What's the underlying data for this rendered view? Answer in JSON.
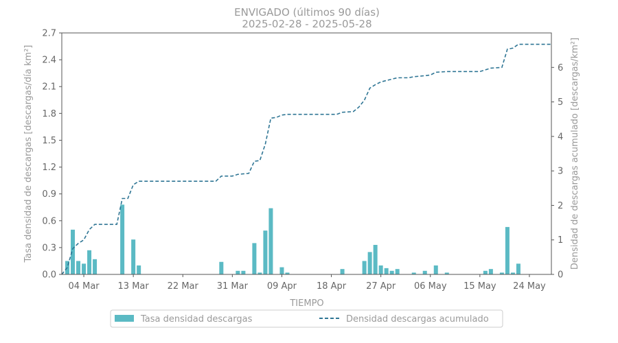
{
  "chart_data": {
    "type": "bar",
    "title": "ENVIGADO (últimos 90 días)",
    "subtitle": "2025-02-28  -  2025-05-28",
    "xlabel": "TIEMPO",
    "ylabel_left": "Tasa densidad de descargas [descargas/día km²]",
    "ylabel_right": "Densidad de descargas acumulado [descargas/km²]",
    "x_range": [
      "2025-02-28",
      "2025-05-28"
    ],
    "ylim_left": [
      0,
      2.7
    ],
    "ylim_right": [
      0,
      7.0
    ],
    "yticks_left": [
      "0.0",
      "0.3",
      "0.6",
      "0.9",
      "1.2",
      "1.5",
      "1.8",
      "2.1",
      "2.4",
      "2.7"
    ],
    "yticks_right": [
      "0",
      "1",
      "2",
      "3",
      "4",
      "5",
      "6"
    ],
    "xticks": [
      {
        "date": "2025-03-04",
        "label": "04 Mar"
      },
      {
        "date": "2025-03-13",
        "label": "13 Mar"
      },
      {
        "date": "2025-03-22",
        "label": "22 Mar"
      },
      {
        "date": "2025-03-31",
        "label": "31 Mar"
      },
      {
        "date": "2025-04-09",
        "label": "09 Apr"
      },
      {
        "date": "2025-04-18",
        "label": "18 Apr"
      },
      {
        "date": "2025-04-27",
        "label": "27 Apr"
      },
      {
        "date": "2025-05-06",
        "label": "06 May"
      },
      {
        "date": "2025-05-15",
        "label": "15 May"
      },
      {
        "date": "2025-05-24",
        "label": "24 May"
      }
    ],
    "legend_placement": "bottom-center",
    "grid": false,
    "series": [
      {
        "name": "Tasa densidad descargas",
        "kind": "bar",
        "color": "#5bbac4",
        "points": [
          {
            "date": "2025-03-01",
            "value": 0.15
          },
          {
            "date": "2025-03-02",
            "value": 0.5
          },
          {
            "date": "2025-03-03",
            "value": 0.15
          },
          {
            "date": "2025-03-04",
            "value": 0.12
          },
          {
            "date": "2025-03-05",
            "value": 0.27
          },
          {
            "date": "2025-03-06",
            "value": 0.17
          },
          {
            "date": "2025-03-11",
            "value": 0.78
          },
          {
            "date": "2025-03-13",
            "value": 0.39
          },
          {
            "date": "2025-03-14",
            "value": 0.1
          },
          {
            "date": "2025-03-29",
            "value": 0.14
          },
          {
            "date": "2025-04-01",
            "value": 0.04
          },
          {
            "date": "2025-04-02",
            "value": 0.04
          },
          {
            "date": "2025-04-04",
            "value": 0.35
          },
          {
            "date": "2025-04-05",
            "value": 0.02
          },
          {
            "date": "2025-04-06",
            "value": 0.49
          },
          {
            "date": "2025-04-07",
            "value": 0.74
          },
          {
            "date": "2025-04-09",
            "value": 0.08
          },
          {
            "date": "2025-04-10",
            "value": 0.02
          },
          {
            "date": "2025-04-20",
            "value": 0.06
          },
          {
            "date": "2025-04-24",
            "value": 0.15
          },
          {
            "date": "2025-04-25",
            "value": 0.25
          },
          {
            "date": "2025-04-26",
            "value": 0.33
          },
          {
            "date": "2025-04-27",
            "value": 0.1
          },
          {
            "date": "2025-04-28",
            "value": 0.07
          },
          {
            "date": "2025-04-29",
            "value": 0.04
          },
          {
            "date": "2025-04-30",
            "value": 0.06
          },
          {
            "date": "2025-05-03",
            "value": 0.02
          },
          {
            "date": "2025-05-05",
            "value": 0.04
          },
          {
            "date": "2025-05-07",
            "value": 0.1
          },
          {
            "date": "2025-05-09",
            "value": 0.02
          },
          {
            "date": "2025-05-16",
            "value": 0.04
          },
          {
            "date": "2025-05-17",
            "value": 0.06
          },
          {
            "date": "2025-05-19",
            "value": 0.02
          },
          {
            "date": "2025-05-20",
            "value": 0.53
          },
          {
            "date": "2025-05-21",
            "value": 0.02
          },
          {
            "date": "2025-05-22",
            "value": 0.12
          }
        ]
      },
      {
        "name": "Densidad descargas acumulado",
        "kind": "line",
        "style": "dashed",
        "color": "#2e7594",
        "points": [
          {
            "date": "2025-02-28",
            "value": 0.0
          },
          {
            "date": "2025-03-01",
            "value": 0.2
          },
          {
            "date": "2025-03-02",
            "value": 0.75
          },
          {
            "date": "2025-03-03",
            "value": 0.9
          },
          {
            "date": "2025-03-04",
            "value": 1.0
          },
          {
            "date": "2025-03-05",
            "value": 1.3
          },
          {
            "date": "2025-03-06",
            "value": 1.45
          },
          {
            "date": "2025-03-10",
            "value": 1.45
          },
          {
            "date": "2025-03-11",
            "value": 2.2
          },
          {
            "date": "2025-03-12",
            "value": 2.2
          },
          {
            "date": "2025-03-13",
            "value": 2.6
          },
          {
            "date": "2025-03-14",
            "value": 2.7
          },
          {
            "date": "2025-03-28",
            "value": 2.7
          },
          {
            "date": "2025-03-29",
            "value": 2.85
          },
          {
            "date": "2025-03-31",
            "value": 2.85
          },
          {
            "date": "2025-04-01",
            "value": 2.9
          },
          {
            "date": "2025-04-03",
            "value": 2.93
          },
          {
            "date": "2025-04-04",
            "value": 3.28
          },
          {
            "date": "2025-04-05",
            "value": 3.3
          },
          {
            "date": "2025-04-06",
            "value": 3.78
          },
          {
            "date": "2025-04-07",
            "value": 4.53
          },
          {
            "date": "2025-04-08",
            "value": 4.55
          },
          {
            "date": "2025-04-09",
            "value": 4.62
          },
          {
            "date": "2025-04-10",
            "value": 4.64
          },
          {
            "date": "2025-04-19",
            "value": 4.64
          },
          {
            "date": "2025-04-20",
            "value": 4.7
          },
          {
            "date": "2025-04-22",
            "value": 4.72
          },
          {
            "date": "2025-04-23",
            "value": 4.85
          },
          {
            "date": "2025-04-24",
            "value": 5.05
          },
          {
            "date": "2025-04-25",
            "value": 5.4
          },
          {
            "date": "2025-04-26",
            "value": 5.5
          },
          {
            "date": "2025-04-27",
            "value": 5.58
          },
          {
            "date": "2025-04-28",
            "value": 5.62
          },
          {
            "date": "2025-04-29",
            "value": 5.66
          },
          {
            "date": "2025-04-30",
            "value": 5.7
          },
          {
            "date": "2025-05-02",
            "value": 5.7
          },
          {
            "date": "2025-05-03",
            "value": 5.73
          },
          {
            "date": "2025-05-05",
            "value": 5.76
          },
          {
            "date": "2025-05-06",
            "value": 5.78
          },
          {
            "date": "2025-05-07",
            "value": 5.86
          },
          {
            "date": "2025-05-09",
            "value": 5.88
          },
          {
            "date": "2025-05-15",
            "value": 5.88
          },
          {
            "date": "2025-05-17",
            "value": 5.98
          },
          {
            "date": "2025-05-19",
            "value": 6.0
          },
          {
            "date": "2025-05-20",
            "value": 6.53
          },
          {
            "date": "2025-05-21",
            "value": 6.56
          },
          {
            "date": "2025-05-22",
            "value": 6.67
          },
          {
            "date": "2025-05-28",
            "value": 6.67
          }
        ]
      }
    ]
  }
}
